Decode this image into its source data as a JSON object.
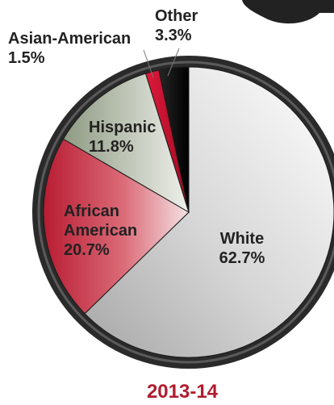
{
  "chart_data": {
    "type": "pie",
    "title": "",
    "caption": "2013-14",
    "start_angle_deg": 0,
    "direction": "clockwise",
    "slices": [
      {
        "key": "white",
        "category": "White",
        "value": 62.7,
        "label_lines": [
          "White",
          "62.7%"
        ],
        "color": "#c9c9c9"
      },
      {
        "key": "african-american",
        "category": "African American",
        "value": 20.7,
        "label_lines": [
          "African",
          "American",
          "20.7%"
        ],
        "color": "#c73a4e"
      },
      {
        "key": "hispanic",
        "category": "Hispanic",
        "value": 11.8,
        "label_lines": [
          "Hispanic",
          "11.8%"
        ],
        "color": "#c4ccbd"
      },
      {
        "key": "asian-american",
        "category": "Asian-American",
        "value": 1.5,
        "label_lines": [
          "Asian-American",
          "1.5%"
        ],
        "color": "#c8102e"
      },
      {
        "key": "other",
        "category": "Other",
        "value": 3.3,
        "label_lines": [
          "Other",
          "3.3%"
        ],
        "color": "#141414"
      }
    ],
    "colors": {
      "label_text": "#222222",
      "caption": "#b01c2e",
      "frame": "#2a2a2a",
      "leader": "#777777"
    }
  }
}
